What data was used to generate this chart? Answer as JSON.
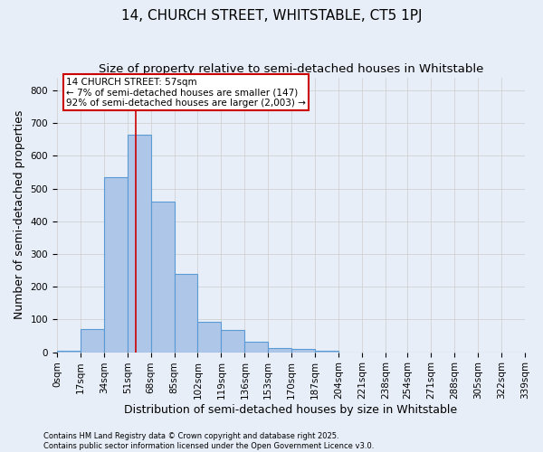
{
  "title": "14, CHURCH STREET, WHITSTABLE, CT5 1PJ",
  "subtitle": "Size of property relative to semi-detached houses in Whitstable",
  "xlabel": "Distribution of semi-detached houses by size in Whitstable",
  "ylabel": "Number of semi-detached properties",
  "bar_values": [
    5,
    70,
    535,
    665,
    460,
    238,
    92,
    68,
    32,
    12,
    10,
    5,
    0,
    0,
    0,
    0,
    0,
    0,
    0,
    0
  ],
  "bar_edges": [
    0,
    17,
    34,
    51,
    68,
    85,
    102,
    119,
    136,
    153,
    170,
    187,
    204,
    221,
    238,
    254,
    271,
    288,
    305,
    322,
    339
  ],
  "xtick_labels": [
    "0sqm",
    "17sqm",
    "34sqm",
    "51sqm",
    "68sqm",
    "85sqm",
    "102sqm",
    "119sqm",
    "136sqm",
    "153sqm",
    "170sqm",
    "187sqm",
    "204sqm",
    "221sqm",
    "238sqm",
    "254sqm",
    "271sqm",
    "288sqm",
    "305sqm",
    "322sqm",
    "339sqm"
  ],
  "bar_color": "#aec6e8",
  "bar_edgecolor": "#5b9bd5",
  "property_line_x": 57,
  "property_label": "14 CHURCH STREET: 57sqm",
  "smaller_pct": "7% of semi-detached houses are smaller (147)",
  "larger_pct": "92% of semi-detached houses are larger (2,003)",
  "annotation_box_color": "#cc0000",
  "grid_color": "#cccccc",
  "background_color": "#e8eef8",
  "ylim": [
    0,
    840
  ],
  "yticks": [
    0,
    100,
    200,
    300,
    400,
    500,
    600,
    700,
    800
  ],
  "footnote1": "Contains HM Land Registry data © Crown copyright and database right 2025.",
  "footnote2": "Contains public sector information licensed under the Open Government Licence v3.0.",
  "title_fontsize": 11,
  "subtitle_fontsize": 9.5,
  "axis_label_fontsize": 9,
  "tick_fontsize": 7.5,
  "annot_fontsize": 7.5
}
